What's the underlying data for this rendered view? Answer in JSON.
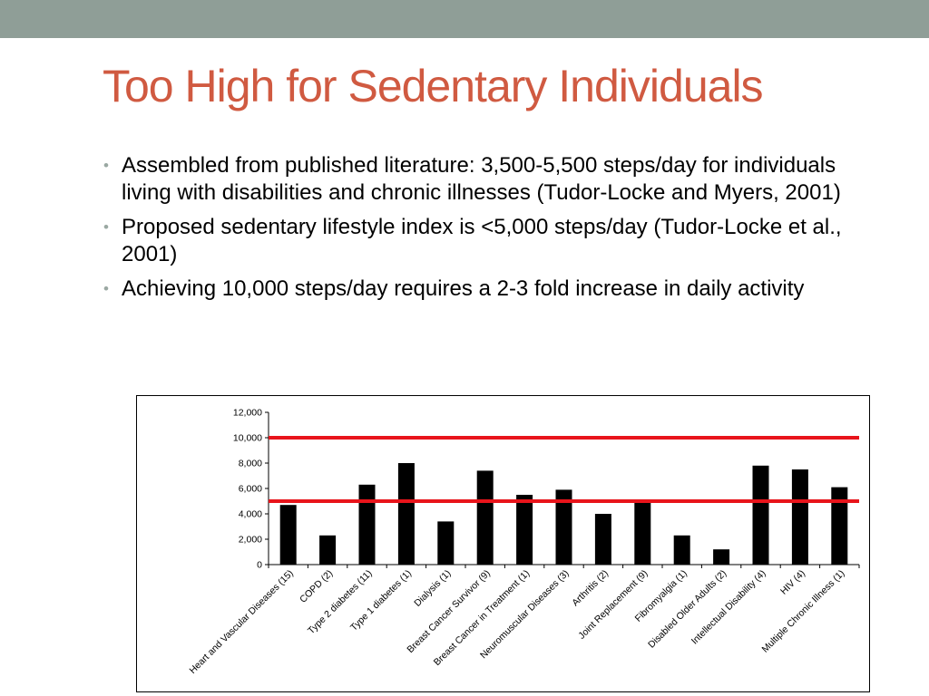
{
  "slide": {
    "title": "Too High for Sedentary Individuals",
    "bullets": [
      "Assembled from published literature: 3,500-5,500 steps/day for individuals living with disabilities and chronic illnesses (Tudor-Locke and Myers, 2001)",
      "Proposed sedentary lifestyle index is <5,000 steps/day (Tudor-Locke et al., 2001)",
      "Achieving 10,000 steps/day requires a 2-3 fold increase in daily activity"
    ]
  },
  "colors": {
    "title": "#d05a41",
    "top_bar": "#8f9e97",
    "bars": "#000000",
    "reference_lines": "#e8141b"
  },
  "chart_data": {
    "type": "bar",
    "title": "",
    "xlabel": "",
    "ylabel": "",
    "ylim": [
      0,
      12000
    ],
    "yticks": [
      0,
      2000,
      4000,
      6000,
      8000,
      10000,
      12000
    ],
    "ytick_labels": [
      "0",
      "2,000",
      "4,000",
      "6,000",
      "8,000",
      "10,000",
      "12,000"
    ],
    "grid": false,
    "legend": "none",
    "categories": [
      "Heart and Vascular Diseases (15)",
      "COPD (2)",
      "Type 2 diabetes (11)",
      "Type 1 diabetes (1)",
      "Dialysis (1)",
      "Breast Cancer Survivor (9)",
      "Breast Cancer in Treatment (1)",
      "Neuromuscular Diseases (3)",
      "Arthritis (2)",
      "Joint Replacement (9)",
      "Fibromyalgia (1)",
      "Disabled Older Adults (2)",
      "Intellectual Disability (4)",
      "HIV (4)",
      "Multiple Chronic Illness (1)"
    ],
    "values": [
      4700,
      2300,
      6300,
      8000,
      3400,
      7400,
      5500,
      5900,
      4000,
      5000,
      2300,
      1200,
      7800,
      7500,
      6100
    ],
    "reference_lines": [
      10000,
      5000
    ]
  }
}
